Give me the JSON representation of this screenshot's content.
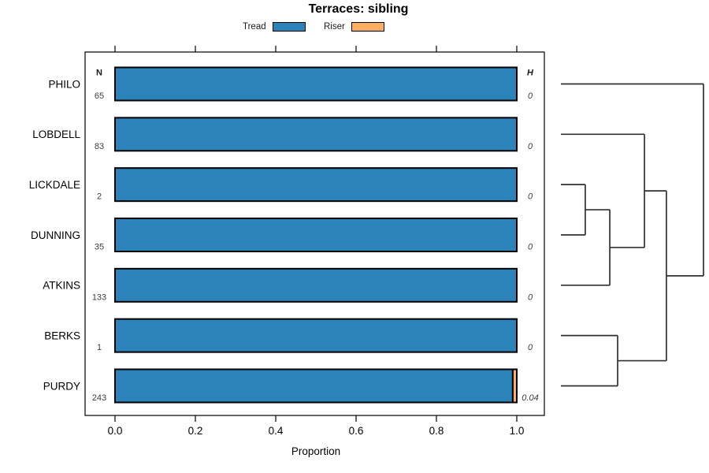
{
  "chart_data": {
    "type": "bar",
    "orientation": "horizontal-stacked",
    "title": "Terraces: sibling",
    "xlabel": "Proportion",
    "xlim": [
      0.0,
      1.0
    ],
    "x_ticks": [
      "0.0",
      "0.2",
      "0.4",
      "0.6",
      "0.8",
      "1.0"
    ],
    "grid": false,
    "legend_position": "top-center",
    "legend": [
      {
        "label": "Tread",
        "color": "#2B83BA"
      },
      {
        "label": "Riser",
        "color": "#FDAE61"
      }
    ],
    "columns": {
      "left_header": "N",
      "right_header": "H"
    },
    "rows": [
      {
        "name": "PHILO",
        "n": 65,
        "h": "0",
        "tread": 1.0,
        "riser": 0.0
      },
      {
        "name": "LOBDELL",
        "n": 83,
        "h": "0",
        "tread": 1.0,
        "riser": 0.0
      },
      {
        "name": "LICKDALE",
        "n": 2,
        "h": "0",
        "tread": 1.0,
        "riser": 0.0
      },
      {
        "name": "DUNNING",
        "n": 35,
        "h": "0",
        "tread": 1.0,
        "riser": 0.0
      },
      {
        "name": "ATKINS",
        "n": 133,
        "h": "0",
        "tread": 1.0,
        "riser": 0.0
      },
      {
        "name": "BERKS",
        "n": 1,
        "h": "0",
        "tread": 1.0,
        "riser": 0.0
      },
      {
        "name": "PURDY",
        "n": 243,
        "h": "0.04",
        "tread": 0.99,
        "riser": 0.01
      }
    ],
    "dendrogram": {
      "leaves": [
        "PHILO",
        "LOBDELL",
        "LICKDALE",
        "DUNNING",
        "ATKINS",
        "BERKS",
        "PURDY"
      ],
      "merges": [
        {
          "id": "n1",
          "a": "LICKDALE",
          "b": "DUNNING",
          "height": 0.171
        },
        {
          "id": "n2",
          "a": "n1",
          "b": "ATKINS",
          "height": 0.343
        },
        {
          "id": "n3",
          "a": "LOBDELL",
          "b": "n2",
          "height": 0.586
        },
        {
          "id": "n4",
          "a": "BERKS",
          "b": "PURDY",
          "height": 0.398
        },
        {
          "id": "n5",
          "a": "n3",
          "b": "n4",
          "height": 0.74
        },
        {
          "id": "n6",
          "a": "PHILO",
          "b": "n5",
          "height": 1.0
        }
      ]
    },
    "colors": {
      "bar_border": "#000000",
      "dendrogram_line": "#303030",
      "value_text": "#3c3c3c",
      "label_text": "#000000"
    }
  }
}
